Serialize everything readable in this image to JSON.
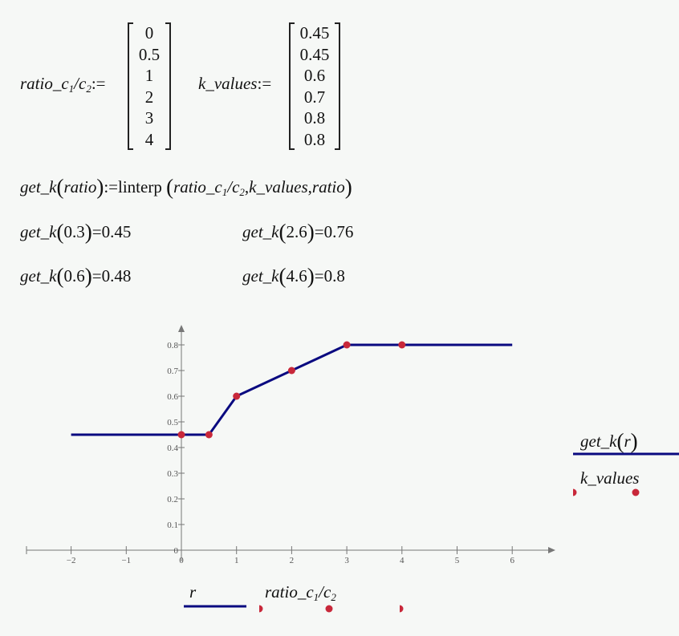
{
  "definitions": {
    "ratio": {
      "name": "ratio_c",
      "sub1": "1",
      "slash": "/c",
      "sub2": "2",
      "assign": ":=",
      "values": [
        "0",
        "0.5",
        "1",
        "2",
        "3",
        "4"
      ]
    },
    "k": {
      "name": "k_values",
      "assign": ":=",
      "values": [
        "0.45",
        "0.45",
        "0.6",
        "0.7",
        "0.8",
        "0.8"
      ]
    }
  },
  "function_def": {
    "name": "get_k",
    "arg": "ratio",
    "assign": ":=",
    "func": "linterp",
    "args_a": "ratio_c",
    "sub1": "1",
    "slash": "/c",
    "sub2": "2",
    "comma1": ",",
    "args_b": "k_values",
    "comma2": ",",
    "args_c": "ratio"
  },
  "evaluations": [
    {
      "name": "get_k",
      "arg": "0.3",
      "eq": "=",
      "result": "0.45"
    },
    {
      "name": "get_k",
      "arg": "2.6",
      "eq": "=",
      "result": "0.76"
    },
    {
      "name": "get_k",
      "arg": "0.6",
      "eq": "=",
      "result": "0.48"
    },
    {
      "name": "get_k",
      "arg": "4.6",
      "eq": "=",
      "result": "0.8"
    }
  ],
  "chart_data": {
    "type": "line",
    "xlim": [
      -2.8,
      6.8
    ],
    "ylim": [
      0,
      0.85
    ],
    "x_ticks": [
      "-2",
      "-1",
      "0",
      "1",
      "2",
      "3",
      "4",
      "5",
      "6"
    ],
    "y_ticks": [
      "0",
      "0.1",
      "0.2",
      "0.3",
      "0.4",
      "0.5",
      "0.6",
      "0.7",
      "0.8"
    ],
    "grid": false,
    "series": [
      {
        "name": "get_k(r)",
        "kind": "line",
        "color": "#0a0a80",
        "x": [
          -2,
          0,
          0.5,
          1,
          2,
          3,
          4,
          6
        ],
        "y": [
          0.45,
          0.45,
          0.45,
          0.6,
          0.7,
          0.8,
          0.8,
          0.8
        ]
      },
      {
        "name": "k_values",
        "kind": "scatter",
        "color": "#c8283a",
        "x": [
          0,
          0.5,
          1,
          2,
          3,
          4
        ],
        "y": [
          0.45,
          0.45,
          0.6,
          0.7,
          0.8,
          0.8
        ]
      }
    ],
    "legend_right": {
      "y1_name": "get_k",
      "y1_arg": "r",
      "y2_name": "k_values"
    },
    "legend_bottom": {
      "x1_name": "r",
      "x2_name": "ratio_c",
      "x2_sub1": "1",
      "x2_slash": "/c",
      "x2_sub2": "2"
    }
  }
}
